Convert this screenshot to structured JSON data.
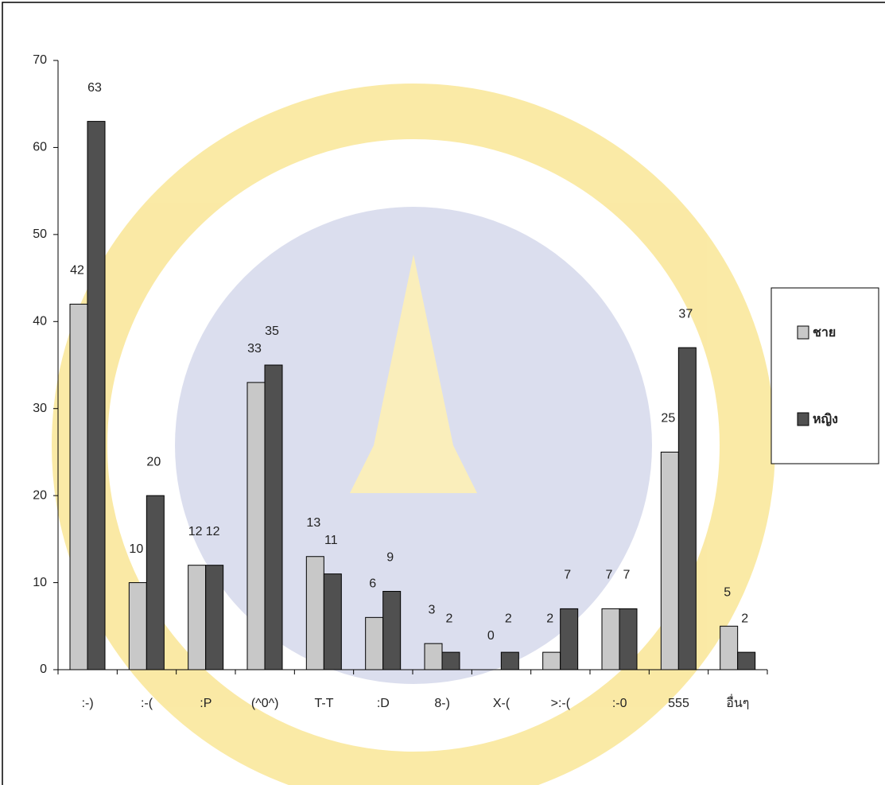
{
  "chart_data": {
    "type": "bar",
    "categories": [
      ":-)",
      ":-(",
      ":P",
      "(^0^)",
      "T-T",
      ":D",
      "8-)",
      "X-(",
      ">:-(",
      ":-0",
      "555",
      "อื่นๆ"
    ],
    "series": [
      {
        "name": "ชาย",
        "color": "#c8c8c8",
        "values": [
          42,
          10,
          12,
          33,
          13,
          6,
          3,
          0,
          2,
          7,
          25,
          5
        ]
      },
      {
        "name": "หญิง",
        "color": "#505050",
        "values": [
          63,
          20,
          12,
          35,
          11,
          9,
          2,
          2,
          7,
          7,
          37,
          2
        ]
      }
    ],
    "ylim": [
      0,
      70
    ],
    "yticks": [
      0,
      10,
      20,
      30,
      40,
      50,
      60,
      70
    ],
    "legend": "right"
  }
}
